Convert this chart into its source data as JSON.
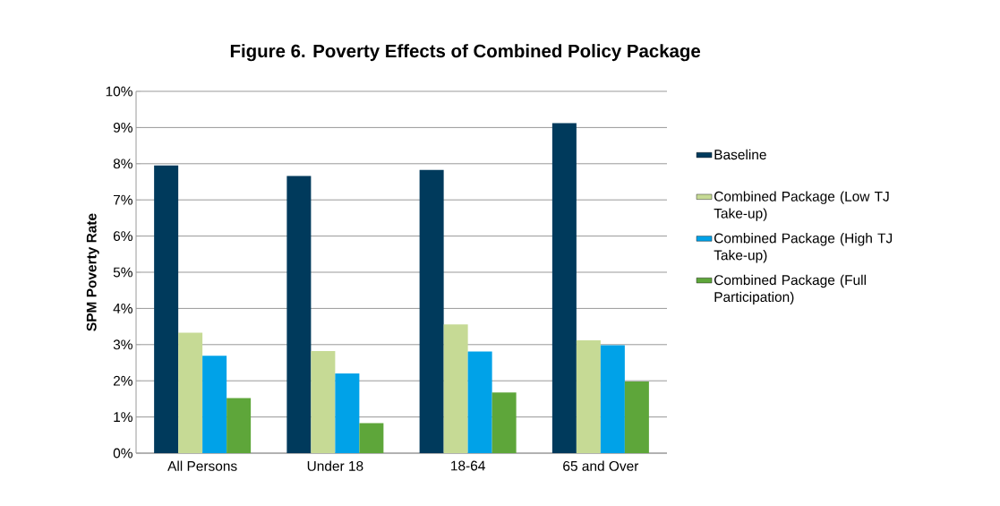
{
  "chart_data": {
    "type": "bar",
    "title": "Figure 6. Poverty Effects of Combined Policy Package",
    "ylabel": "SPM Poverty Rate",
    "categories": [
      "All Persons",
      "Under 18",
      "18-64",
      "65 and Over"
    ],
    "series": [
      {
        "name": "Baseline",
        "color": "#003a5c",
        "values": [
          7.95,
          7.66,
          7.83,
          9.12
        ]
      },
      {
        "name": "Combined Package (Low TJ Take-up)",
        "color": "#c6da95",
        "values": [
          3.33,
          2.82,
          3.56,
          3.12
        ]
      },
      {
        "name": "Combined Package (High TJ Take-up)",
        "color": "#00a2e8",
        "values": [
          2.69,
          2.2,
          2.81,
          2.98
        ]
      },
      {
        "name": "Combined Package (Full Participation)",
        "color": "#5ea63a",
        "values": [
          1.52,
          0.83,
          1.68,
          1.98
        ]
      }
    ],
    "ylim": [
      0,
      10
    ],
    "yticks": [
      {
        "value": 0,
        "label": "0%"
      },
      {
        "value": 1,
        "label": "1%"
      },
      {
        "value": 2,
        "label": "2%"
      },
      {
        "value": 3,
        "label": "3%"
      },
      {
        "value": 4,
        "label": "4%"
      },
      {
        "value": 5,
        "label": "5%"
      },
      {
        "value": 6,
        "label": "6%"
      },
      {
        "value": 7,
        "label": "7%"
      },
      {
        "value": 8,
        "label": "8%"
      },
      {
        "value": 9,
        "label": "9%"
      },
      {
        "value": 10,
        "label": "10%"
      }
    ],
    "grid": "y",
    "legend": "right"
  }
}
